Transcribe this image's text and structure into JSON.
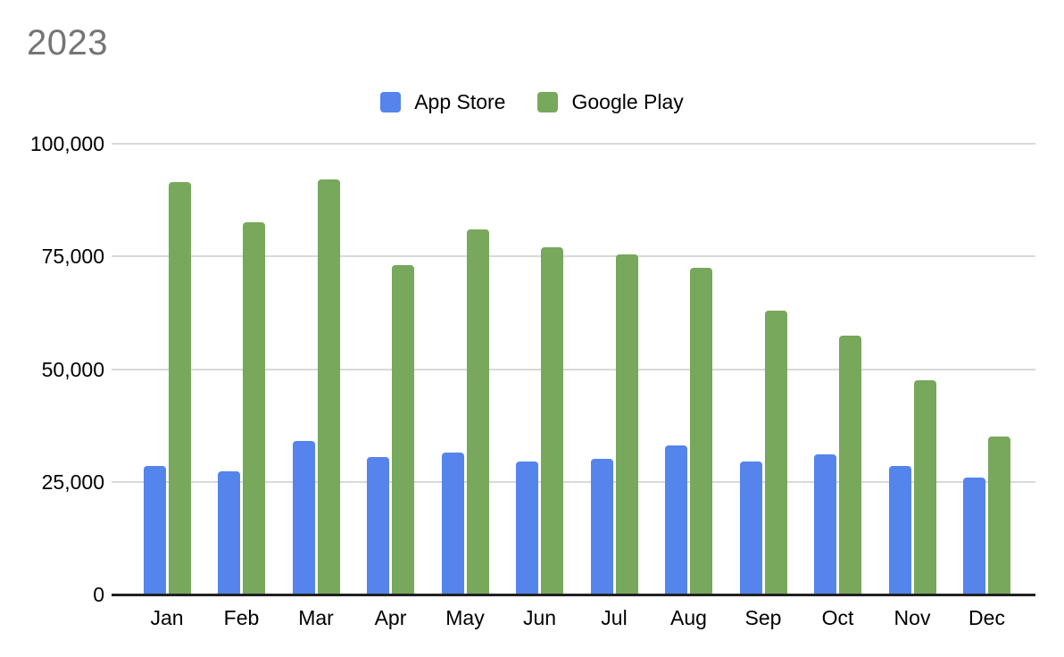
{
  "title": "2023",
  "legend": {
    "items": [
      {
        "label": "App Store",
        "color": "#5584EC"
      },
      {
        "label": "Google Play",
        "color": "#77A85C"
      }
    ]
  },
  "y_axis": {
    "ticks": [
      {
        "label": "0",
        "value": 0
      },
      {
        "label": "25,000",
        "value": 25000
      },
      {
        "label": "50,000",
        "value": 50000
      },
      {
        "label": "75,000",
        "value": 75000
      },
      {
        "label": "100,000",
        "value": 100000
      }
    ]
  },
  "x_axis": {
    "labels": [
      "Jan",
      "Feb",
      "Mar",
      "Apr",
      "May",
      "Jun",
      "Jul",
      "Aug",
      "Sep",
      "Oct",
      "Nov",
      "Dec"
    ]
  },
  "chart_data": {
    "type": "bar",
    "title": "2023",
    "categories": [
      "Jan",
      "Feb",
      "Mar",
      "Apr",
      "May",
      "Jun",
      "Jul",
      "Aug",
      "Sep",
      "Oct",
      "Nov",
      "Dec"
    ],
    "series": [
      {
        "name": "App Store",
        "color": "#5584EC",
        "values": [
          28500,
          27300,
          34000,
          30500,
          31500,
          29500,
          30000,
          33000,
          29500,
          31000,
          28500,
          26000
        ]
      },
      {
        "name": "Google Play",
        "color": "#77A85C",
        "values": [
          91500,
          82500,
          92000,
          73000,
          81000,
          77000,
          75500,
          72500,
          63000,
          57500,
          47500,
          35000
        ]
      }
    ],
    "ylim": [
      0,
      100000
    ],
    "grid": true,
    "legend_position": "top",
    "xlabel": "",
    "ylabel": ""
  },
  "colors": {
    "background": "#FFFFFF",
    "gridline": "#D9D9D9",
    "axis_line": "#212121",
    "title_text": "#757575",
    "label_text": "#000000"
  }
}
